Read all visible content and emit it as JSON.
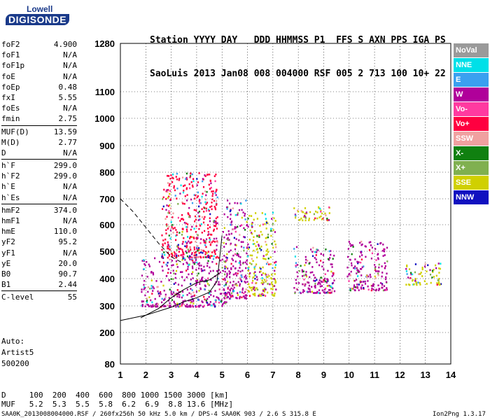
{
  "logo": {
    "line1": "Lowell",
    "line2": "DIGISONDE"
  },
  "header": {
    "labels": [
      "Station",
      "YYYY",
      "DAY",
      "DDD",
      "HHMMSS",
      "P1",
      "FFS",
      "S",
      "AXN",
      "PPS",
      "IGA",
      "PS"
    ],
    "values": [
      "SaoLuis",
      "2013",
      "Jan08",
      "008",
      "004000",
      "RSF",
      "005",
      "2",
      "713",
      "100",
      "10+",
      "22"
    ]
  },
  "params": [
    [
      [
        "foF2",
        "4.900"
      ],
      [
        "foF1",
        "N/A"
      ],
      [
        "foF1p",
        "N/A"
      ],
      [
        "foE",
        "N/A"
      ],
      [
        "foEp",
        "0.48"
      ],
      [
        "fxI",
        "5.55"
      ],
      [
        "foEs",
        "N/A"
      ],
      [
        "fmin",
        "2.75"
      ]
    ],
    [
      [
        "MUF(D)",
        "13.59"
      ],
      [
        "M(D)",
        "2.77"
      ],
      [
        "D",
        "N/A"
      ]
    ],
    [
      [
        "h`F",
        "299.0"
      ],
      [
        "h`F2",
        "299.0"
      ],
      [
        "h`E",
        "N/A"
      ],
      [
        "h`Es",
        "N/A"
      ]
    ],
    [
      [
        "hmF2",
        "374.0"
      ],
      [
        "hmF1",
        "N/A"
      ],
      [
        "hmE",
        "110.0"
      ],
      [
        "yF2",
        "95.2"
      ],
      [
        "yF1",
        "N/A"
      ],
      [
        "yE",
        "20.0"
      ],
      [
        "B0",
        "90.7"
      ],
      [
        "B1",
        "2.44"
      ]
    ],
    [
      [
        "C-level",
        "55"
      ]
    ]
  ],
  "auto": {
    "line1": "Auto:",
    "line2": "Artist5",
    "line3": "500200"
  },
  "legend": [
    {
      "label": "NoVal",
      "bg": "#9a9a9a",
      "fg": "#ffffff"
    },
    {
      "label": "NNE",
      "bg": "#00e0e8",
      "fg": "#ffffff"
    },
    {
      "label": "E",
      "bg": "#3aa0f0",
      "fg": "#ffffff"
    },
    {
      "label": "W",
      "bg": "#b0009a",
      "fg": "#ffffff"
    },
    {
      "label": "Vo-",
      "bg": "#ff3aa0",
      "fg": "#ffffff"
    },
    {
      "label": "Vo+",
      "bg": "#ff0040",
      "fg": "#ffffff"
    },
    {
      "label": "SSW",
      "bg": "#f0a0a0",
      "fg": "#ffffff"
    },
    {
      "label": "X-",
      "bg": "#108010",
      "fg": "#ffffff"
    },
    {
      "label": "X+",
      "bg": "#80b050",
      "fg": "#ffffff"
    },
    {
      "label": "SSE",
      "bg": "#d0d000",
      "fg": "#ffffff"
    },
    {
      "label": "NNW",
      "bg": "#1010c0",
      "fg": "#ffffff"
    }
  ],
  "footer": {
    "d_line": "D     100  200  400  600  800 1000 1500 3000 [km]",
    "muf_line": "MUF   5.2  5.3  5.5  5.8  6.2  6.9  8.8 13.6 [MHz]",
    "info_line": "SAA0K_2013008004000.RSF / 260fx256h 50 kHz 5.0 km / DPS-4 SAA0K 903 / 2.6 S 315.8 E",
    "version": "Ion2Png 1.3.17"
  },
  "chart_data": {
    "type": "scatter",
    "title": "",
    "xlabel": "",
    "ylabel": "",
    "x_ticks": [
      1,
      2,
      3,
      4,
      5,
      6,
      7,
      8,
      9,
      10,
      11,
      12,
      13,
      14
    ],
    "y_ticks": [
      80,
      200,
      300,
      400,
      500,
      600,
      700,
      800,
      900,
      1000,
      1100,
      1280
    ],
    "xlim": [
      1,
      14
    ],
    "ylim": [
      80,
      1280
    ],
    "y_scale": "nonlinear (height axis)",
    "grid": "dotted",
    "curves": [
      {
        "name": "virtual-height-trace",
        "style": "dashed",
        "x": [
          1.0,
          1.5,
          2.0,
          2.5,
          3.0,
          3.4
        ],
        "y": [
          700,
          650,
          590,
          530,
          480,
          460
        ]
      },
      {
        "name": "profile-curve",
        "style": "solid",
        "x": [
          1.0,
          2.0,
          3.0,
          3.5,
          4.0,
          4.5,
          4.8,
          4.9,
          5.0
        ],
        "y": [
          245,
          265,
          295,
          315,
          330,
          350,
          390,
          470,
          560
        ]
      },
      {
        "name": "lower-profile",
        "style": "solid",
        "x": [
          1.8,
          2.5,
          3.0,
          3.5,
          4.0,
          4.5,
          4.9
        ],
        "y": [
          255,
          290,
          330,
          360,
          385,
          395,
          420
        ]
      }
    ],
    "clusters": [
      {
        "x_range": [
          1.8,
          5.2
        ],
        "y_range": [
          300,
          480
        ],
        "main_color": "W"
      },
      {
        "x_range": [
          2.6,
          4.8
        ],
        "y_range": [
          480,
          800
        ],
        "main_color": "Vo+"
      },
      {
        "x_range": [
          5.0,
          6.0
        ],
        "y_range": [
          330,
          700
        ],
        "main_color": "W"
      },
      {
        "x_range": [
          6.0,
          7.1
        ],
        "y_range": [
          340,
          650
        ],
        "main_color": "SSE"
      },
      {
        "x_range": [
          7.8,
          9.4
        ],
        "y_range": [
          350,
          520
        ],
        "main_color": "W"
      },
      {
        "x_range": [
          7.8,
          9.2
        ],
        "y_range": [
          620,
          680
        ],
        "main_color": "SSE"
      },
      {
        "x_range": [
          9.9,
          11.5
        ],
        "y_range": [
          360,
          540
        ],
        "main_color": "W"
      },
      {
        "x_range": [
          12.2,
          13.6
        ],
        "y_range": [
          380,
          460
        ],
        "main_color": "SSE"
      }
    ]
  }
}
